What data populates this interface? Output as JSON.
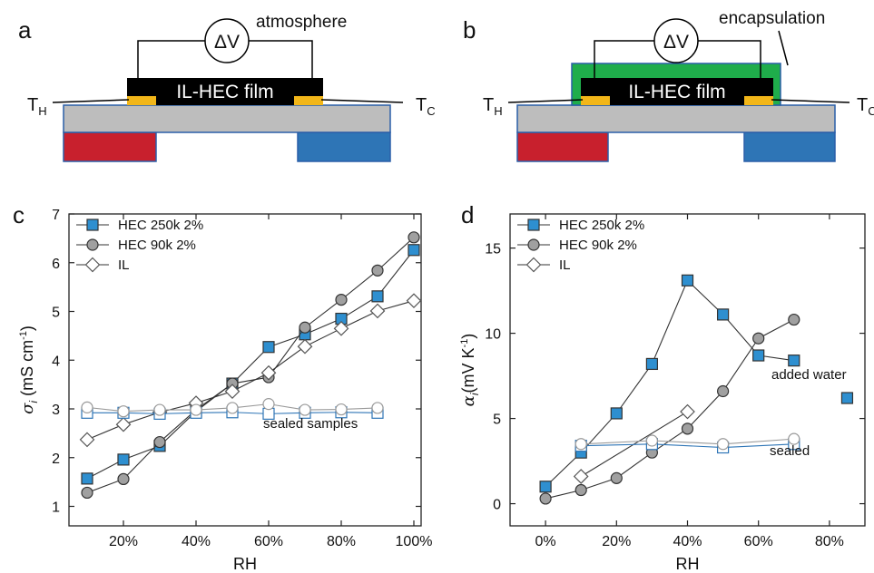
{
  "panels": {
    "a": {
      "letter": "a",
      "label_top": "atmosphere",
      "voltmeter": "ΔV",
      "film": "IL-HEC film",
      "th_main": "T",
      "th_sub": "H",
      "tc_main": "T",
      "tc_sub": "C"
    },
    "b": {
      "letter": "b",
      "label_top": "encapsulation",
      "voltmeter": "ΔV",
      "film": "IL-HEC film",
      "th_main": "T",
      "th_sub": "H",
      "tc_main": "T",
      "tc_sub": "C"
    },
    "c": {
      "letter": "c"
    },
    "d": {
      "letter": "d"
    }
  },
  "colors": {
    "hot": "#c8202d",
    "cold": "#2e75b6",
    "substrate": "#bdbdbd",
    "film": "#000000",
    "electrode": "#f2b619",
    "encapsulation": "#1fad4b",
    "series_hec250": "#2e8fd0",
    "series_hec90": "#a0a0a0"
  },
  "chart_data": [
    {
      "type": "scatter",
      "panel": "c",
      "xlabel": "RH",
      "ylabel_main": "σ",
      "ylabel_sub": "i",
      "ylabel_unit": " (mS cm",
      "ylabel_sup": "-1",
      "ylabel_close": ")",
      "xlim": [
        0.05,
        1.02
      ],
      "ylim": [
        0.6,
        7.0
      ],
      "xticks": [
        0.2,
        0.4,
        0.6,
        0.8,
        1.0
      ],
      "xtick_labels": [
        "20%",
        "40%",
        "60%",
        "80%",
        "100%"
      ],
      "yticks": [
        1,
        2,
        3,
        4,
        5,
        6,
        7
      ],
      "ytick_labels": [
        "1",
        "2",
        "3",
        "4",
        "5",
        "6",
        "7"
      ],
      "legend_position": "top-left",
      "series": [
        {
          "name": "HEC 250k 2%",
          "marker": "square",
          "fill": "filled",
          "x": [
            0.1,
            0.2,
            0.3,
            0.4,
            0.5,
            0.6,
            0.7,
            0.8,
            0.9,
            1.0
          ],
          "y": [
            1.57,
            1.96,
            2.24,
            2.95,
            3.52,
            4.27,
            4.53,
            4.85,
            5.31,
            6.26
          ]
        },
        {
          "name": "HEC 90k 2%",
          "marker": "circle",
          "fill": "filled",
          "x": [
            0.1,
            0.2,
            0.3,
            0.4,
            0.5,
            0.6,
            0.7,
            0.8,
            0.9,
            1.0
          ],
          "y": [
            1.28,
            1.56,
            2.32,
            2.98,
            3.52,
            3.65,
            4.67,
            5.24,
            5.84,
            6.52
          ]
        },
        {
          "name": "IL",
          "marker": "diamond",
          "fill": "open",
          "x": [
            0.1,
            0.2,
            0.3,
            0.4,
            0.5,
            0.6,
            0.7,
            0.8,
            0.9,
            1.0
          ],
          "y": [
            2.37,
            2.68,
            2.93,
            3.12,
            3.36,
            3.74,
            4.28,
            4.65,
            5.01,
            5.22
          ]
        },
        {
          "name": "",
          "marker": "square",
          "fill": "open",
          "x": [
            0.1,
            0.2,
            0.3,
            0.4,
            0.5,
            0.6,
            0.7,
            0.8,
            0.9
          ],
          "y": [
            2.92,
            2.92,
            2.9,
            2.92,
            2.93,
            2.9,
            2.92,
            2.93,
            2.92
          ]
        },
        {
          "name": "",
          "marker": "circle",
          "fill": "open",
          "x": [
            0.1,
            0.2,
            0.3,
            0.4,
            0.5,
            0.6,
            0.7,
            0.8,
            0.9
          ],
          "y": [
            3.03,
            2.95,
            2.98,
            2.98,
            3.02,
            3.1,
            2.98,
            2.99,
            3.02
          ]
        }
      ],
      "annotations": [
        "sealed samples"
      ]
    },
    {
      "type": "scatter",
      "panel": "d",
      "xlabel": "RH",
      "ylabel_main": "α",
      "ylabel_sub": "i",
      "ylabel_unit": "(mV K",
      "ylabel_sup": "-1",
      "ylabel_close": ")",
      "xlim": [
        -0.1,
        0.9
      ],
      "ylim": [
        -1.3,
        17.0
      ],
      "xticks": [
        0,
        0.2,
        0.4,
        0.6,
        0.8
      ],
      "xtick_labels": [
        "0%",
        "20%",
        "40%",
        "60%",
        "80%"
      ],
      "yticks": [
        0,
        5,
        10,
        15
      ],
      "ytick_labels": [
        "0",
        "5",
        "10",
        "15"
      ],
      "legend_position": "top-left",
      "series": [
        {
          "name": "HEC 250k 2%",
          "marker": "square",
          "fill": "filled",
          "x": [
            0.0,
            0.1,
            0.2,
            0.3,
            0.4,
            0.5,
            0.6,
            0.7
          ],
          "y": [
            1.0,
            3.0,
            5.3,
            8.2,
            13.1,
            11.1,
            8.7,
            8.4
          ]
        },
        {
          "name": "",
          "marker": "square",
          "fill": "filled",
          "x": [
            0.85
          ],
          "y": [
            6.2
          ]
        },
        {
          "name": "HEC 90k 2%",
          "marker": "circle",
          "fill": "filled",
          "x": [
            0.0,
            0.1,
            0.2,
            0.3,
            0.4,
            0.5,
            0.6,
            0.7
          ],
          "y": [
            0.3,
            0.8,
            1.5,
            3.0,
            4.4,
            6.6,
            9.7,
            10.8
          ]
        },
        {
          "name": "IL",
          "marker": "diamond",
          "fill": "open",
          "x": [
            0.1,
            0.4
          ],
          "y": [
            1.6,
            5.4
          ]
        },
        {
          "name": "",
          "marker": "square",
          "fill": "open",
          "x": [
            0.1,
            0.3,
            0.5,
            0.7
          ],
          "y": [
            3.4,
            3.5,
            3.3,
            3.5
          ]
        },
        {
          "name": "",
          "marker": "circle",
          "fill": "open",
          "x": [
            0.1,
            0.3,
            0.5,
            0.7
          ],
          "y": [
            3.5,
            3.7,
            3.5,
            3.8
          ]
        }
      ],
      "annotations": [
        "added water",
        "sealed"
      ]
    }
  ]
}
